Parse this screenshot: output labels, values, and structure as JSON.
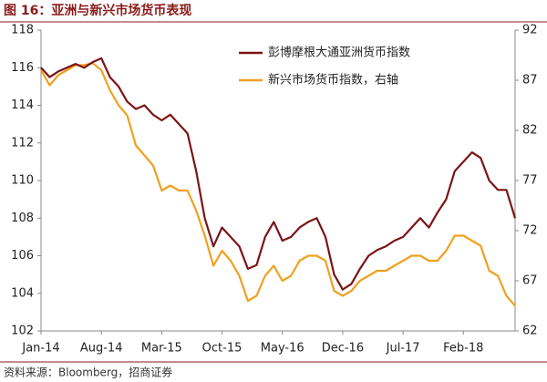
{
  "chart_data": {
    "type": "line",
    "title": "图 16：亚洲与新兴市场货币表现",
    "source": "资料来源：Bloomberg，招商证券",
    "categories": [
      "Jan-14",
      null,
      null,
      null,
      null,
      null,
      null,
      "Aug-14",
      null,
      null,
      null,
      null,
      null,
      null,
      "Mar-15",
      null,
      null,
      null,
      null,
      null,
      null,
      "Oct-15",
      null,
      null,
      null,
      null,
      null,
      null,
      "May-16",
      null,
      null,
      null,
      null,
      null,
      null,
      "Dec-16",
      null,
      null,
      null,
      null,
      null,
      null,
      "Jul-17",
      null,
      null,
      null,
      null,
      null,
      null,
      "Feb-18",
      null,
      null,
      null,
      null,
      null,
      null
    ],
    "ylim": [
      102,
      118
    ],
    "yticks": [
      102,
      104,
      106,
      108,
      110,
      112,
      114,
      116,
      118
    ],
    "y2lim": [
      62,
      92
    ],
    "y2ticks": [
      62,
      67,
      72,
      77,
      82,
      87,
      92
    ],
    "legend": "upper right",
    "series": [
      {
        "name": "彭博摩根大通亚洲货币指数",
        "color": "#7b1416",
        "values": [
          116,
          115.5,
          115.8,
          116,
          116.2,
          116,
          116.3,
          116.5,
          115.5,
          115,
          114.2,
          113.8,
          114,
          113.5,
          113.2,
          113.5,
          113,
          112.5,
          110.5,
          108,
          106.5,
          107.5,
          107,
          106.5,
          105.3,
          105.5,
          107,
          107.8,
          106.8,
          107,
          107.5,
          107.8,
          108,
          107,
          105,
          104.2,
          104.5,
          105.3,
          106,
          106.3,
          106.5,
          106.8,
          107,
          107.5,
          108,
          107.5,
          108.3,
          109,
          110.5,
          111,
          111.5,
          111.2,
          110,
          109.5,
          109.5,
          108
        ]
      },
      {
        "name": "新兴市场货币指数，右轴",
        "color": "#f0a020",
        "axis": "y2",
        "values": [
          88,
          86.5,
          87.5,
          88,
          88.5,
          88.5,
          88.7,
          88,
          86,
          84.5,
          83.5,
          80.5,
          79.5,
          78.5,
          76,
          76.5,
          76,
          76,
          74,
          71.5,
          68.5,
          70,
          69,
          67.5,
          65,
          65.5,
          67.5,
          68.5,
          67,
          67.5,
          69,
          69.5,
          69.5,
          69,
          66,
          65.5,
          66,
          67,
          67.5,
          68,
          68,
          68.5,
          69,
          69.5,
          69.5,
          69,
          69,
          70,
          71.5,
          71.5,
          71,
          70.5,
          68,
          67.5,
          65.5,
          64.5
        ]
      }
    ]
  }
}
